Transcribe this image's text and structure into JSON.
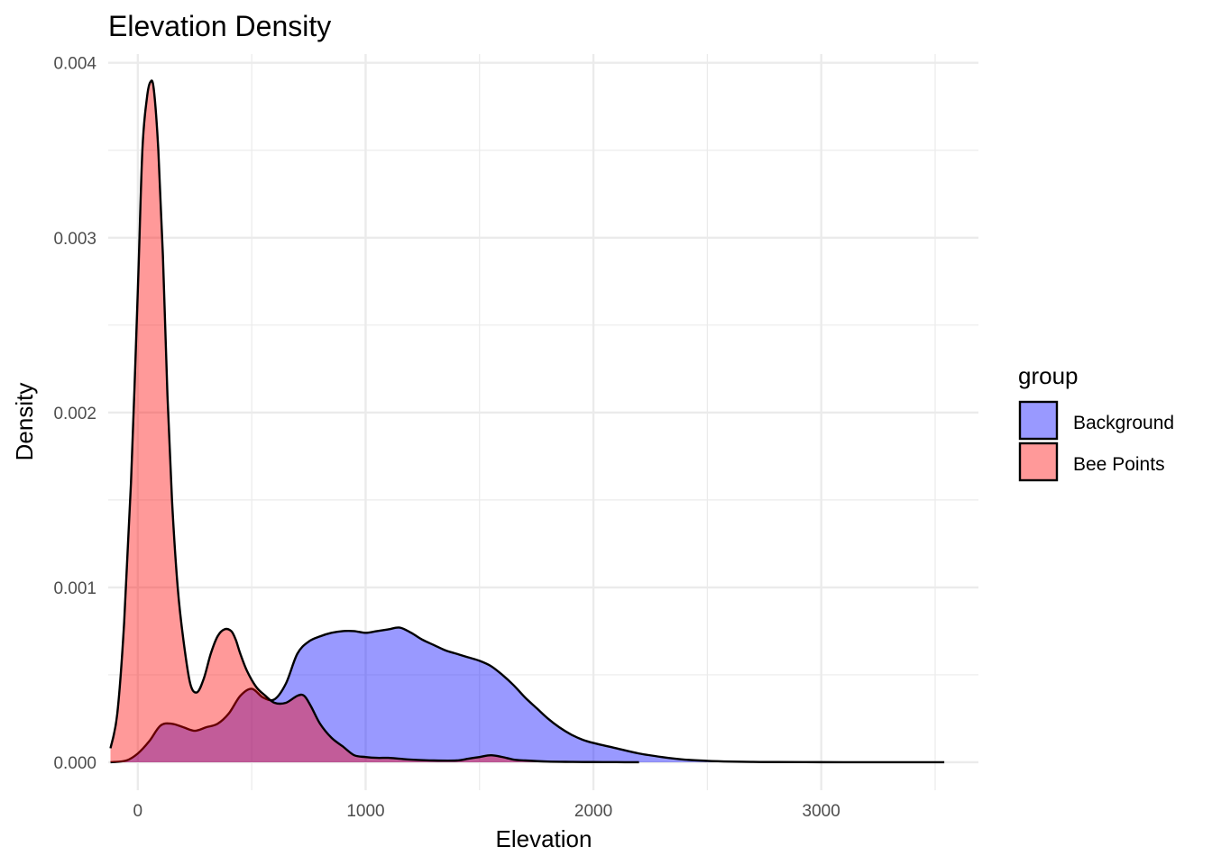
{
  "chart_data": {
    "type": "area",
    "title": "Elevation Density",
    "xlabel": "Elevation",
    "ylabel": "Density",
    "xlim": [
      -130,
      3690
    ],
    "ylim": [
      -0.00016,
      0.00405
    ],
    "x_ticks": [
      0,
      1000,
      2000,
      3000
    ],
    "y_ticks": [
      0.0,
      0.001,
      0.002,
      0.003,
      0.004
    ],
    "x_tick_labels": [
      "0",
      "1000",
      "2000",
      "3000"
    ],
    "y_tick_labels": [
      "0.000",
      "0.001",
      "0.002",
      "0.003",
      "0.004"
    ],
    "grid": true,
    "legend": {
      "title": "group",
      "position": "right",
      "entries": [
        "Background",
        "Bee Points"
      ]
    },
    "series": [
      {
        "name": "Background",
        "color": "#0000ff",
        "fill_opacity": 0.4,
        "x": [
          -120,
          -50,
          0,
          50,
          100,
          150,
          200,
          250,
          300,
          350,
          400,
          450,
          500,
          550,
          600,
          650,
          700,
          750,
          800,
          850,
          900,
          950,
          1000,
          1050,
          1100,
          1150,
          1200,
          1250,
          1300,
          1350,
          1400,
          1450,
          1500,
          1550,
          1600,
          1650,
          1700,
          1750,
          1800,
          1850,
          1900,
          1950,
          2000,
          2100,
          2200,
          2300,
          2400,
          2500,
          2600,
          2700,
          2800,
          3000,
          3200,
          3400,
          3540
        ],
        "y": [
          0.0,
          1e-05,
          5e-05,
          0.00012,
          0.00021,
          0.00022,
          0.0002,
          0.00018,
          0.0002,
          0.00022,
          0.00028,
          0.00038,
          0.00042,
          0.00037,
          0.00036,
          0.00045,
          0.00062,
          0.00069,
          0.00072,
          0.00074,
          0.00075,
          0.00075,
          0.00074,
          0.00075,
          0.00076,
          0.00077,
          0.00074,
          0.0007,
          0.00067,
          0.00064,
          0.00062,
          0.0006,
          0.00058,
          0.00055,
          0.0005,
          0.00044,
          0.00037,
          0.00031,
          0.00025,
          0.0002,
          0.00016,
          0.00013,
          0.00011,
          8e-05,
          5e-05,
          3e-05,
          1.5e-05,
          8e-06,
          4e-06,
          2e-06,
          1e-06,
          4e-07,
          2e-07,
          1e-07,
          0.0
        ]
      },
      {
        "name": "Bee Points",
        "color": "#ff0000",
        "fill_opacity": 0.4,
        "x": [
          -120,
          -90,
          -60,
          -30,
          0,
          20,
          40,
          55,
          70,
          90,
          110,
          130,
          150,
          175,
          200,
          230,
          260,
          290,
          320,
          350,
          380,
          410,
          430,
          450,
          480,
          520,
          560,
          600,
          650,
          700,
          730,
          760,
          800,
          850,
          900,
          950,
          1000,
          1050,
          1100,
          1150,
          1200,
          1300,
          1400,
          1450,
          1500,
          1550,
          1600,
          1650,
          1700,
          1800,
          1900,
          2000,
          2100,
          2200
        ],
        "y": [
          8e-05,
          0.00028,
          0.0008,
          0.0016,
          0.0027,
          0.0035,
          0.0038,
          0.00389,
          0.00385,
          0.0035,
          0.0029,
          0.0021,
          0.0015,
          0.001,
          0.0007,
          0.00045,
          0.0004,
          0.00048,
          0.00062,
          0.00072,
          0.00076,
          0.00075,
          0.0007,
          0.00062,
          0.00052,
          0.00043,
          0.00038,
          0.00034,
          0.00034,
          0.00038,
          0.00038,
          0.00032,
          0.00022,
          0.00014,
          9e-05,
          4e-05,
          3e-05,
          2.5e-05,
          2.5e-05,
          2e-05,
          1.5e-05,
          1e-05,
          1e-05,
          2e-05,
          3e-05,
          4e-05,
          3e-05,
          1.5e-05,
          1e-05,
          4e-06,
          2e-06,
          1e-06,
          5e-07,
          0.0
        ]
      }
    ]
  }
}
